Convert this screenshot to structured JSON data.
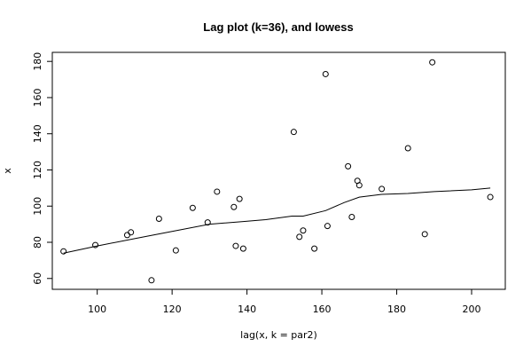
{
  "chart_data": {
    "type": "scatter",
    "title": "Lag plot (k=36), and lowess",
    "xlabel": "lag(x, k = par2)",
    "ylabel": "x",
    "xlim": [
      88,
      209
    ],
    "ylim": [
      54,
      185
    ],
    "xticks": [
      100,
      120,
      140,
      160,
      180,
      200
    ],
    "yticks": [
      60,
      80,
      100,
      120,
      140,
      160,
      180
    ],
    "grid": false,
    "points": [
      {
        "x": 91,
        "y": 75
      },
      {
        "x": 99.5,
        "y": 78.5
      },
      {
        "x": 108,
        "y": 84
      },
      {
        "x": 109,
        "y": 85.5
      },
      {
        "x": 114.5,
        "y": 59
      },
      {
        "x": 116.5,
        "y": 93
      },
      {
        "x": 121,
        "y": 75.5
      },
      {
        "x": 125.5,
        "y": 99
      },
      {
        "x": 129.5,
        "y": 91
      },
      {
        "x": 132,
        "y": 108
      },
      {
        "x": 136.5,
        "y": 99.5
      },
      {
        "x": 137,
        "y": 78
      },
      {
        "x": 138,
        "y": 104
      },
      {
        "x": 139,
        "y": 76.5
      },
      {
        "x": 152.5,
        "y": 141
      },
      {
        "x": 154,
        "y": 83
      },
      {
        "x": 155,
        "y": 86.5
      },
      {
        "x": 158,
        "y": 76.5
      },
      {
        "x": 161,
        "y": 173
      },
      {
        "x": 161.5,
        "y": 89
      },
      {
        "x": 167,
        "y": 122
      },
      {
        "x": 168,
        "y": 94
      },
      {
        "x": 169.5,
        "y": 114
      },
      {
        "x": 170,
        "y": 111.5
      },
      {
        "x": 176,
        "y": 109.5
      },
      {
        "x": 183,
        "y": 132
      },
      {
        "x": 187.5,
        "y": 84.5
      },
      {
        "x": 189.5,
        "y": 179.5
      },
      {
        "x": 205,
        "y": 105
      }
    ],
    "lowess": [
      {
        "x": 91,
        "y": 74
      },
      {
        "x": 100,
        "y": 78
      },
      {
        "x": 110,
        "y": 82
      },
      {
        "x": 120,
        "y": 86
      },
      {
        "x": 130,
        "y": 90
      },
      {
        "x": 139,
        "y": 91.5
      },
      {
        "x": 145,
        "y": 92.5
      },
      {
        "x": 152,
        "y": 94.5
      },
      {
        "x": 155,
        "y": 94.5
      },
      {
        "x": 161,
        "y": 97.5
      },
      {
        "x": 166,
        "y": 102
      },
      {
        "x": 170,
        "y": 105
      },
      {
        "x": 176,
        "y": 106.5
      },
      {
        "x": 183,
        "y": 107
      },
      {
        "x": 190,
        "y": 108
      },
      {
        "x": 200,
        "y": 109
      },
      {
        "x": 205,
        "y": 110
      }
    ]
  }
}
